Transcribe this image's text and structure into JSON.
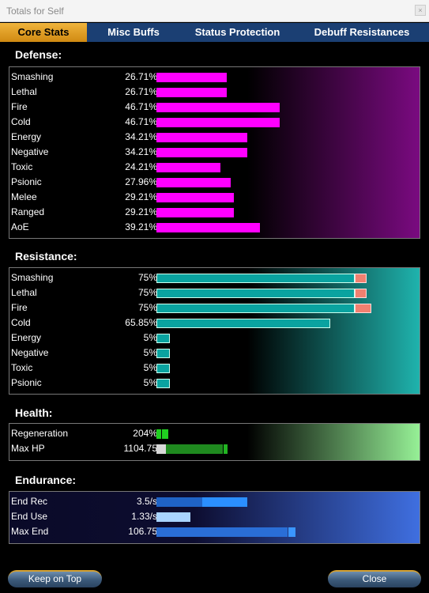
{
  "window": {
    "title": "Totals for Self",
    "close_glyph": "×"
  },
  "tabs": [
    {
      "label": "Core Stats",
      "active": true
    },
    {
      "label": "Misc Buffs",
      "active": false
    },
    {
      "label": "Status Protection",
      "active": false
    },
    {
      "label": "Debuff Resistances",
      "active": false
    }
  ],
  "defense": {
    "title": "Defense:",
    "bar_color": "#ff00ff",
    "rows": [
      {
        "label": "Smashing",
        "value": "26.71%",
        "pct": 26.71
      },
      {
        "label": "Lethal",
        "value": "26.71%",
        "pct": 26.71
      },
      {
        "label": "Fire",
        "value": "46.71%",
        "pct": 46.71
      },
      {
        "label": "Cold",
        "value": "46.71%",
        "pct": 46.71
      },
      {
        "label": "Energy",
        "value": "34.21%",
        "pct": 34.21
      },
      {
        "label": "Negative",
        "value": "34.21%",
        "pct": 34.21
      },
      {
        "label": "Toxic",
        "value": "24.21%",
        "pct": 24.21
      },
      {
        "label": "Psionic",
        "value": "27.96%",
        "pct": 27.96
      },
      {
        "label": "Melee",
        "value": "29.21%",
        "pct": 29.21
      },
      {
        "label": "Ranged",
        "value": "29.21%",
        "pct": 29.21
      },
      {
        "label": "AoE",
        "value": "39.21%",
        "pct": 39.21
      }
    ]
  },
  "resistance": {
    "title": "Resistance:",
    "bar_color": "#0aa3a0",
    "overcap_color": "#f08070",
    "rows": [
      {
        "label": "Smashing",
        "value": "75%",
        "pct": 75,
        "overcap_pct": 5
      },
      {
        "label": "Lethal",
        "value": "75%",
        "pct": 75,
        "overcap_pct": 5
      },
      {
        "label": "Fire",
        "value": "75%",
        "pct": 75,
        "overcap_pct": 7
      },
      {
        "label": "Cold",
        "value": "65.85%",
        "pct": 65.85,
        "overcap_pct": 0
      },
      {
        "label": "Energy",
        "value": "5%",
        "pct": 5,
        "overcap_pct": 0
      },
      {
        "label": "Negative",
        "value": "5%",
        "pct": 5,
        "overcap_pct": 0
      },
      {
        "label": "Toxic",
        "value": "5%",
        "pct": 5,
        "overcap_pct": 0
      },
      {
        "label": "Psionic",
        "value": "5%",
        "pct": 5,
        "overcap_pct": 0
      }
    ]
  },
  "health": {
    "title": "Health:",
    "rows": [
      {
        "label": "Regeneration",
        "value": "204%"
      },
      {
        "label": "Max HP",
        "value": "1104.75"
      }
    ]
  },
  "endurance": {
    "title": "Endurance:",
    "rows": [
      {
        "label": "End Rec",
        "value": "3.5/s"
      },
      {
        "label": "End Use",
        "value": "1.33/s"
      },
      {
        "label": "Max End",
        "value": "106.75"
      }
    ]
  },
  "buttons": {
    "keep_on_top": "Keep on Top",
    "close": "Close"
  }
}
